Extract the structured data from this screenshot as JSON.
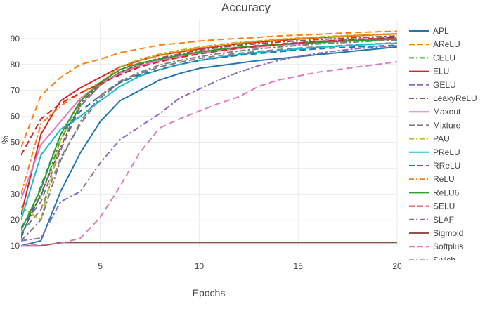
{
  "chart_data": {
    "type": "line",
    "title": "Accuracy",
    "xlabel": "Epochs",
    "ylabel": "%",
    "xlim": [
      1,
      20
    ],
    "ylim": [
      9.5,
      97
    ],
    "xticks": [
      5,
      10,
      15,
      20
    ],
    "yticks": [
      10,
      20,
      30,
      40,
      50,
      60,
      70,
      80,
      90
    ],
    "grid": true,
    "legend_position": "right",
    "x": [
      1,
      2,
      3,
      4,
      5,
      6,
      7,
      8,
      9,
      10,
      11,
      12,
      13,
      14,
      15,
      16,
      17,
      18,
      19,
      20
    ],
    "series": [
      {
        "name": "APL",
        "color": "#1f77b4",
        "dash": "solid",
        "values": [
          10,
          12,
          31,
          46,
          58,
          66,
          70,
          74,
          76.5,
          78.5,
          79.5,
          80.5,
          81.5,
          82.2,
          83,
          83.8,
          84.5,
          85.3,
          86,
          86.8
        ]
      },
      {
        "name": "AReLU",
        "color": "#ff7f0e",
        "dash": "dash",
        "values": [
          48,
          68,
          75,
          80,
          82,
          84.5,
          86,
          87.5,
          88.2,
          89,
          89.6,
          90,
          90.5,
          91,
          91.3,
          91.6,
          92,
          92.3,
          92.6,
          92.8
        ]
      },
      {
        "name": "CELU",
        "color": "#2ca02c",
        "dash": "dashdot",
        "values": [
          17,
          29,
          51,
          64,
          72,
          77,
          79.5,
          81.5,
          83,
          84.5,
          85.5,
          86.5,
          87,
          87.5,
          88,
          88.5,
          88.9,
          89.2,
          89.5,
          89.8
        ]
      },
      {
        "name": "ELU",
        "color": "#d62728",
        "dash": "solid",
        "values": [
          22,
          53,
          66,
          71,
          75,
          79,
          81.5,
          83.5,
          84.8,
          86,
          87,
          88,
          88.6,
          89.2,
          89.8,
          90.3,
          90.7,
          91.1,
          91.5,
          91.8
        ]
      },
      {
        "name": "GELU",
        "color": "#9467bd",
        "dash": "dash",
        "values": [
          17,
          27,
          47,
          64,
          72,
          77,
          80,
          82,
          83.5,
          84.8,
          85.8,
          86.6,
          87.3,
          87.9,
          88.4,
          88.9,
          89.3,
          89.7,
          90,
          90.3
        ]
      },
      {
        "name": "LeakyReLU",
        "color": "#8c564b",
        "dash": "dashdot",
        "values": [
          14,
          30,
          48,
          65,
          72.5,
          77,
          80,
          82.5,
          84,
          85.5,
          86.5,
          87.4,
          88,
          88.6,
          89.1,
          89.6,
          90,
          90.4,
          90.7,
          91
        ]
      },
      {
        "name": "Maxout",
        "color": "#e377c2",
        "dash": "solid",
        "values": [
          28,
          49,
          58,
          67,
          72.5,
          76.5,
          79.5,
          81.5,
          83,
          84.3,
          85.3,
          86.2,
          86.8,
          87.4,
          87.9,
          88.4,
          88.8,
          89.2,
          89.5,
          89.8
        ]
      },
      {
        "name": "Mixture",
        "color": "#7f7f7f",
        "dash": "dash",
        "values": [
          15,
          24,
          44,
          57,
          67,
          73,
          76.5,
          79,
          80.8,
          82.3,
          83.4,
          84.3,
          85,
          85.7,
          86.3,
          86.8,
          87.2,
          87.6,
          88,
          88.3
        ]
      },
      {
        "name": "PAU",
        "color": "#bcbd22",
        "dash": "dashdot",
        "values": [
          25,
          20,
          51,
          66,
          73,
          79,
          82,
          84,
          85.5,
          86.7,
          87.7,
          88.5,
          89.1,
          89.7,
          90.2,
          90.6,
          91,
          91.3,
          91.6,
          91.9
        ]
      },
      {
        "name": "PReLU",
        "color": "#17becf",
        "dash": "solid",
        "values": [
          20,
          45,
          55,
          60,
          66,
          71.5,
          75.5,
          78,
          80,
          81.5,
          82.7,
          83.8,
          84.6,
          85.3,
          86,
          86.6,
          87,
          87.5,
          87.9,
          88.2
        ]
      },
      {
        "name": "RReLU",
        "color": "#1f77b4",
        "dash": "dash",
        "values": [
          13,
          33,
          53,
          62,
          68,
          73,
          76,
          78,
          80,
          81.5,
          82.6,
          83.5,
          84.2,
          84.9,
          85.5,
          86,
          86.4,
          86.8,
          87.1,
          87.4
        ]
      },
      {
        "name": "ReLU",
        "color": "#ff7f0e",
        "dash": "dashdot",
        "values": [
          30,
          57,
          64,
          69,
          73,
          78,
          81.5,
          83.5,
          85,
          86.3,
          87.3,
          88.2,
          88.9,
          89.5,
          90,
          90.4,
          90.8,
          91.2,
          91.5,
          91.8
        ]
      },
      {
        "name": "ReLU6",
        "color": "#2ca02c",
        "dash": "solid",
        "values": [
          16,
          32,
          53,
          66,
          73,
          78,
          80.5,
          82,
          83.5,
          84.8,
          85.8,
          86.6,
          87.2,
          87.7,
          88.1,
          88.5,
          88.9,
          89.2,
          89.5,
          89.8
        ]
      },
      {
        "name": "SELU",
        "color": "#d62728",
        "dash": "dash",
        "values": [
          45,
          59,
          65,
          69,
          72.5,
          76,
          79,
          81,
          82.7,
          84,
          85.2,
          86.2,
          87,
          87.7,
          88.3,
          88.9,
          89.3,
          89.7,
          90.1,
          90.4
        ]
      },
      {
        "name": "SLAF",
        "color": "#9467bd",
        "dash": "dashdot",
        "values": [
          12,
          13,
          27,
          31,
          42,
          51,
          56,
          61,
          67,
          70.5,
          74,
          77,
          79.5,
          81.5,
          83,
          84.3,
          85.3,
          86.1,
          86.7,
          87.2
        ]
      },
      {
        "name": "Sigmoid",
        "color": "#8c564b",
        "dash": "solid",
        "values": [
          10,
          10,
          11.3,
          11.3,
          11.3,
          11.3,
          11.3,
          11.3,
          11.3,
          11.3,
          11.3,
          11.3,
          11.3,
          11.3,
          11.3,
          11.3,
          11.3,
          11.3,
          11.3,
          11.3
        ]
      },
      {
        "name": "Softplus",
        "color": "#e377c2",
        "dash": "dash",
        "values": [
          10,
          10.5,
          11,
          13,
          21,
          33,
          46,
          55.5,
          59,
          62,
          65,
          67.5,
          71.5,
          74,
          75.5,
          77,
          78,
          79,
          80,
          81
        ]
      },
      {
        "name": "Swish",
        "color": "#7f7f7f",
        "dash": "dashdot",
        "values": [
          12,
          20,
          43,
          58,
          68,
          73.5,
          77,
          79.8,
          81.5,
          83,
          84.2,
          85.2,
          86,
          86.7,
          87.3,
          87.9,
          88.3,
          88.7,
          89.1,
          89.4
        ]
      }
    ]
  }
}
